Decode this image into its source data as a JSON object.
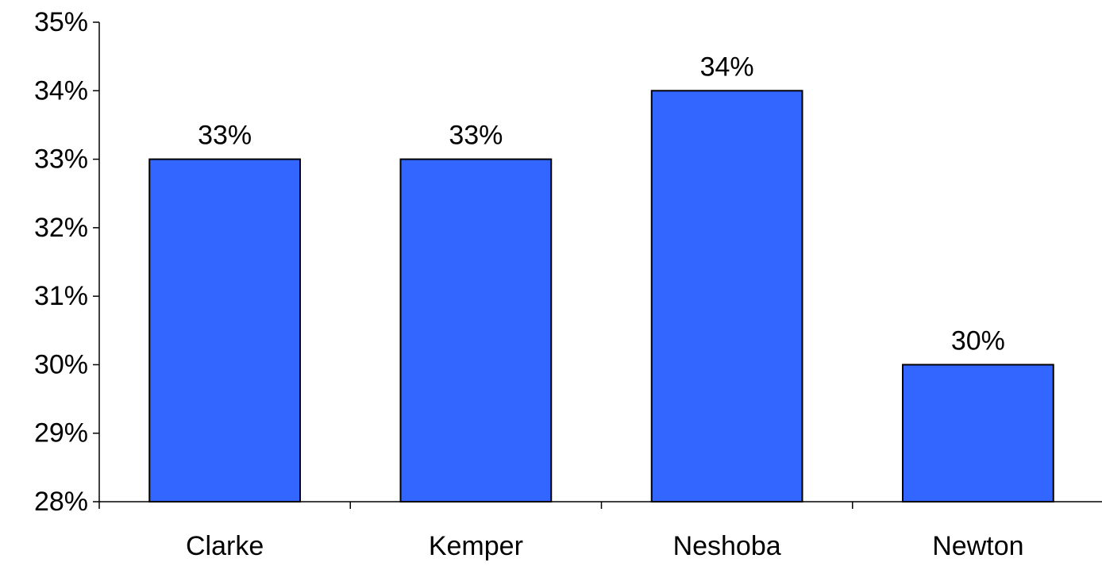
{
  "chart_data": {
    "type": "bar",
    "categories": [
      "Clarke",
      "Kemper",
      "Neshoba",
      "Newton"
    ],
    "values": [
      33,
      33,
      34,
      30
    ],
    "data_labels": [
      "33%",
      "33%",
      "34%",
      "30%"
    ],
    "ylim": [
      28,
      35
    ],
    "y_ticks": [
      28,
      29,
      30,
      31,
      32,
      33,
      34,
      35
    ],
    "y_tick_labels": [
      "28%",
      "29%",
      "30%",
      "31%",
      "32%",
      "33%",
      "34%",
      "35%"
    ],
    "grid": false,
    "legend": "none",
    "bar_color": "#3366FF",
    "bar_outline_color": "#000000"
  }
}
